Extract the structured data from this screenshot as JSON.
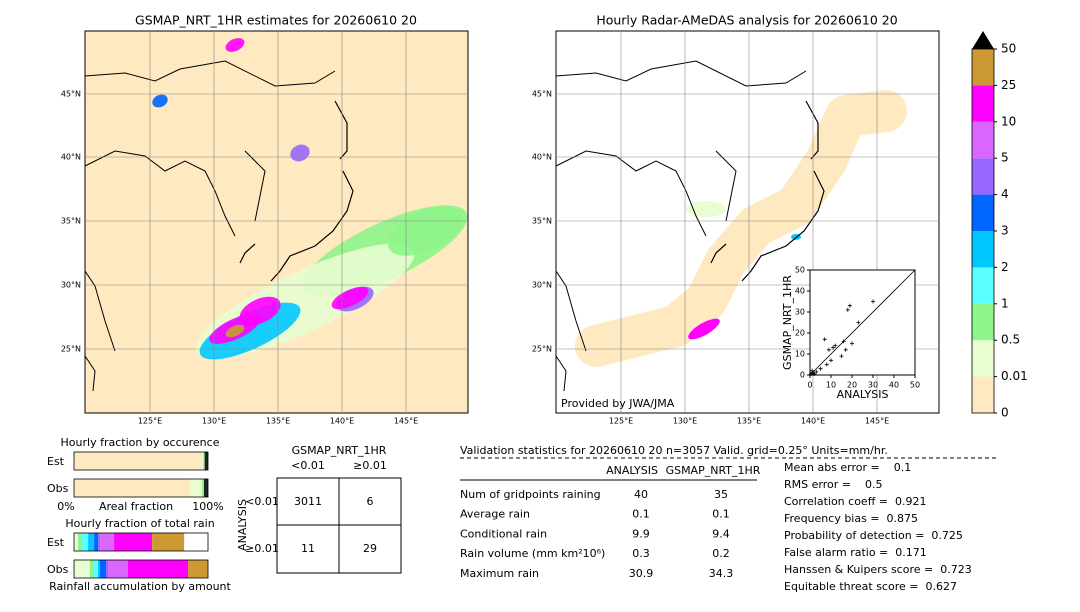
{
  "left_map": {
    "title": "GSMAP_NRT_1HR estimates for 20260610 20",
    "lat_labels": [
      "45°N",
      "40°N",
      "35°N",
      "30°N",
      "25°N"
    ],
    "lon_labels": [
      "125°E",
      "130°E",
      "135°E",
      "140°E",
      "145°E"
    ]
  },
  "right_map": {
    "title": "Hourly Radar-AMeDAS analysis for 20260610 20",
    "lat_labels": [
      "45°N",
      "40°N",
      "35°N",
      "30°N",
      "25°N"
    ],
    "lon_labels": [
      "125°E",
      "130°E",
      "135°E",
      "140°E",
      "145°E"
    ],
    "credit": "Provided by JWA/JMA"
  },
  "scatter": {
    "type": "scatter",
    "xlabel": "ANALYSIS",
    "ylabel": "GSMAP_NRT_1HR",
    "xlim": [
      0,
      50
    ],
    "ylim": [
      0,
      50
    ],
    "xticks": [
      0,
      10,
      20,
      30,
      40,
      50
    ],
    "yticks": [
      0,
      10,
      20,
      30,
      40,
      50
    ],
    "x": [
      0.5,
      1,
      1.5,
      2,
      3,
      5,
      7,
      8,
      9,
      10,
      11,
      12,
      15,
      16,
      17,
      18,
      19,
      20,
      23,
      30
    ],
    "y": [
      0.5,
      2,
      1,
      0.5,
      1.5,
      3,
      17,
      5,
      12,
      7,
      13,
      14,
      9,
      16,
      12,
      31,
      33,
      15,
      25,
      35
    ]
  },
  "colorbar": {
    "ticks": [
      0,
      0.01,
      0.5,
      1,
      2,
      3,
      4,
      5,
      10,
      25,
      50
    ],
    "colors": [
      "#fee9c0",
      "#e9fdd2",
      "#8ef58a",
      "#5cffff",
      "#00c8ff",
      "#0066ff",
      "#9966ff",
      "#d966ff",
      "#ff00ff",
      "#cc9933"
    ],
    "extend_color": "#000000"
  },
  "occurrence": {
    "title": "Hourly fraction by occurence",
    "axis_labels": [
      "0%",
      "Areal fraction",
      "100%"
    ],
    "colors": [
      "#fee9c0",
      "#e9fdd2",
      "#8ef58a",
      "#222222"
    ],
    "series": [
      {
        "name": "Est",
        "values": [
          95.5,
          1,
          1,
          2.5
        ]
      },
      {
        "name": "Obs",
        "values": [
          86.5,
          9,
          1.5,
          3
        ]
      }
    ]
  },
  "total_rain": {
    "title": "Hourly fraction of total rain",
    "footer": "Rainfall accumulation by amount",
    "series": [
      {
        "name": "Est",
        "values": [
          3.0,
          3.0,
          4.5,
          4.5,
          3.0,
          1.5,
          10.4,
          28.4,
          23.9
        ]
      },
      {
        "name": "Obs",
        "values": [
          11.9,
          3.0,
          3.0,
          1.5,
          4.5,
          1.5,
          14.9,
          44.8,
          14.9
        ]
      }
    ]
  },
  "contingency": {
    "title": "GSMAP_NRT_1HR",
    "columns": [
      "<0.01",
      "≥0.01"
    ],
    "row_axis": "ANALYSIS",
    "rows": [
      "<0.01",
      "≥0.01"
    ],
    "cells": [
      [
        3011,
        6
      ],
      [
        11,
        29
      ]
    ]
  },
  "validation": {
    "heading": "Validation statistics for 20260610 20  n=3057 Valid. grid=0.25° Units=mm/hr.",
    "columns": [
      "ANALYSIS",
      "GSMAP_NRT_1HR"
    ],
    "rows": [
      {
        "label": "Num of gridpoints raining",
        "values": [
          40,
          35
        ]
      },
      {
        "label": "Average rain",
        "values": [
          0.1,
          0.1
        ]
      },
      {
        "label": "Conditional rain",
        "values": [
          9.9,
          9.4
        ]
      },
      {
        "label": "Rain volume (mm km²10⁶)",
        "values": [
          0.3,
          0.2
        ]
      },
      {
        "label": "Maximum rain",
        "values": [
          30.9,
          34.3
        ]
      }
    ],
    "scores": [
      "Mean abs error =    0.1",
      "RMS error =    0.5",
      "Correlation coeff =  0.921",
      "Frequency bias =  0.875",
      "Probability of detection =  0.725",
      "False alarm ratio =  0.171",
      "Hanssen & Kuipers score =  0.723",
      "Equitable threat score =  0.627"
    ]
  }
}
